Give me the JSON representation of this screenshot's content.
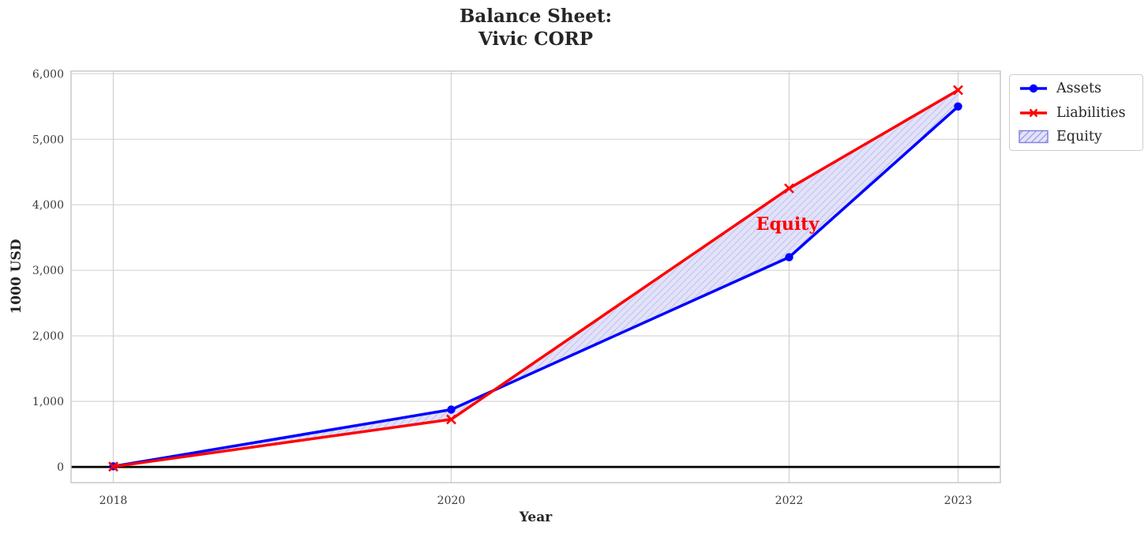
{
  "header": {
    "title_line1": "Balance Sheet:",
    "title_line2": "Vivic CORP"
  },
  "axes": {
    "xlabel": "Year",
    "ylabel": "1000 USD"
  },
  "legend": {
    "position": "upper-right-outside",
    "items": [
      {
        "label": "Assets"
      },
      {
        "label": "Liabilities"
      },
      {
        "label": "Equity"
      }
    ]
  },
  "colors": {
    "assets": "#0000ff",
    "liabilities": "#ff0000",
    "equity_fill": "#e2e2f9",
    "equity_hatch": "#b2b2ec",
    "legend_hatch": "#7d7dde",
    "grid": "#d4d4d4",
    "frame": "#c8c8c8",
    "text": "#262626",
    "tick_text": "#3a3a3a",
    "zero_line": "#000000",
    "annotation": "#ff0000"
  },
  "chart_data": {
    "type": "line",
    "title": "Balance Sheet:\nVivic CORP",
    "xlabel": "Year",
    "ylabel": "1000 USD",
    "x": [
      2018,
      2020,
      2022,
      2023
    ],
    "series": [
      {
        "name": "Assets",
        "color": "#0000ff",
        "marker": "circle",
        "line_width": 3.5,
        "values": [
          10,
          875,
          3200,
          5500
        ]
      },
      {
        "name": "Liabilities",
        "color": "#ff0000",
        "marker": "x",
        "line_width": 3.5,
        "values": [
          5,
          725,
          4250,
          5750
        ]
      }
    ],
    "fill_between": {
      "label": "Equity",
      "between": [
        "Assets",
        "Liabilities"
      ],
      "facecolor": "#e2e2f9",
      "hatch": "//",
      "hatch_color": "#b2b2ec"
    },
    "annotation": {
      "text": "Equity",
      "x": 2021.99,
      "y": 3700,
      "color": "#ff0000",
      "bold": true
    },
    "xticks": [
      2018,
      2020,
      2022,
      2023
    ],
    "xtick_labels": [
      "2018",
      "2020",
      "2022",
      "2023"
    ],
    "yticks": [
      0,
      1000,
      2000,
      3000,
      4000,
      5000,
      6000
    ],
    "ytick_labels": [
      "0",
      "1,000",
      "2,000",
      "3,000",
      "4,000",
      "5,000",
      "6,000"
    ],
    "xlim": [
      2017.75,
      2023.25
    ],
    "ylim": [
      -240,
      6040
    ],
    "grid": true,
    "zero_line_y": 0,
    "legend_position": "upper-right-outside"
  }
}
